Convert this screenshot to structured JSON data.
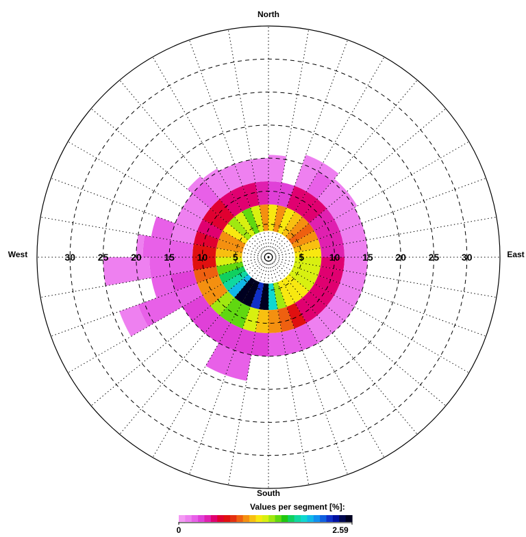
{
  "chart_data": {
    "type": "polar-rose",
    "directions": {
      "north": "North",
      "east": "East",
      "south": "South",
      "west": "West"
    },
    "radial_ticks": [
      "5",
      "10",
      "15",
      "20",
      "25",
      "30"
    ],
    "radial_max": 35,
    "sector_count": 36,
    "rings": [
      {
        "inner": 4,
        "outer": 8,
        "values": [
          1.2,
          1.0,
          1.2,
          1.1,
          1.0,
          0.9,
          1.0,
          1.1,
          1.2,
          1.3,
          1.3,
          1.3,
          1.3,
          1.2,
          1.2,
          1.2,
          1.4,
          1.9,
          2.59,
          2.3,
          2.59,
          2.59,
          2.0,
          1.8,
          1.7,
          1.5,
          1.3,
          1.1,
          1.0,
          1.0,
          1.2,
          1.4,
          1.3,
          1.5,
          1.3,
          1.0
        ]
      },
      {
        "inner": 8,
        "outer": 11.5,
        "values": [
          0.35,
          0.35,
          0.5,
          0.55,
          0.55,
          0.45,
          0.4,
          0.4,
          0.45,
          0.55,
          0.5,
          0.5,
          0.55,
          0.5,
          0.5,
          0.7,
          0.9,
          1.0,
          1.1,
          1.3,
          1.5,
          1.5,
          1.4,
          1.0,
          1.0,
          0.9,
          0.75,
          0.7,
          0.6,
          0.55,
          0.6,
          0.6,
          0.55,
          0.55,
          0.5,
          0.45
        ]
      },
      {
        "inner": 11.5,
        "outer": 15,
        "values": [
          0.1,
          null,
          0.15,
          0.2,
          0.15,
          0.1,
          0.1,
          0.1,
          0.1,
          0.1,
          0.15,
          0.15,
          0.1,
          0.15,
          0.15,
          0.2,
          0.2,
          0.25,
          0.3,
          0.3,
          0.35,
          0.35,
          0.35,
          0.3,
          0.25,
          0.3,
          0.2,
          0.2,
          0.15,
          0.15,
          0.15,
          0.2,
          0.15,
          0.1,
          0.1,
          0.1
        ]
      }
    ],
    "extensions": [
      {
        "sector": 0,
        "outer": 15.5,
        "value": 0.1
      },
      {
        "sector": 2,
        "outer": 16.5,
        "value": 0.15
      },
      {
        "sector": 3,
        "outer": 16.5,
        "value": 0.15
      },
      {
        "sector": 4,
        "outer": 15.5,
        "value": 0.15
      },
      {
        "sector": 5,
        "outer": 15.5,
        "value": 0.1
      },
      {
        "sector": 19,
        "outer": 19,
        "value": 0.2
      },
      {
        "sector": 20,
        "outer": 19,
        "value": 0.2
      },
      {
        "sector": 24,
        "outer": 21,
        "value": 0.2
      },
      {
        "sector": 25,
        "outer": 18,
        "value": 0.25
      },
      {
        "sector": 26,
        "outer": 18,
        "value": 0.25
      },
      {
        "sector": 27,
        "outer": 19,
        "value": 0.2
      },
      {
        "sector": 28,
        "outer": 18,
        "value": 0.2
      },
      {
        "sector": 31,
        "outer": 16,
        "value": 0.15
      },
      {
        "sector": 32,
        "outer": 15.5,
        "value": 0.1
      },
      {
        "sector": 24,
        "inner": 21,
        "outer": 24,
        "value": 0.1
      },
      {
        "sector": 26,
        "inner": 18,
        "outer": 25,
        "value": 0.1
      },
      {
        "sector": 27,
        "inner": 19,
        "outer": 20,
        "value": 0.1
      }
    ],
    "colorbar": {
      "title": "Values per segment [%]:",
      "min_label": "0",
      "max_label": "2.59",
      "min": 0,
      "max": 2.59,
      "colors": [
        "#f49af4",
        "#ee80f0",
        "#e860e8",
        "#e040d8",
        "#e020b0",
        "#e00070",
        "#e00030",
        "#e01010",
        "#e43010",
        "#ee6010",
        "#f49010",
        "#f8c010",
        "#f8e810",
        "#d8f010",
        "#a0e810",
        "#60d810",
        "#20c810",
        "#10d060",
        "#10d8a0",
        "#10d8d0",
        "#10b8e8",
        "#1090f0",
        "#1060e0",
        "#1030c8",
        "#0010a0",
        "#000850",
        "#000020"
      ]
    }
  }
}
